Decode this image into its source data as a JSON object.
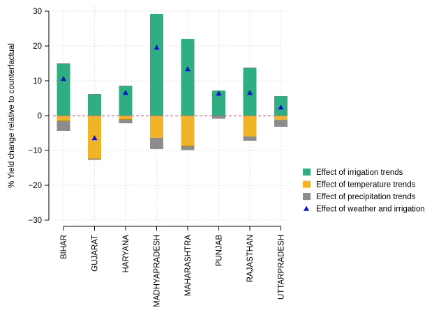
{
  "chart_data": {
    "type": "bar",
    "ylabel": "% Yield change relative to counterfactual",
    "ylim": [
      -30,
      30
    ],
    "yticks": [
      30,
      20,
      10,
      0,
      -10,
      -20,
      -30
    ],
    "ytick_labels": [
      "30",
      "20",
      "10",
      "0",
      "−10",
      "−20",
      "−30"
    ],
    "categories": [
      "BIHAR",
      "GUJARAT",
      "HARYANA",
      "MADHYAPRADESH",
      "MAHARASHTRA",
      "PUNJAB",
      "RAJASTHAN",
      "UTTARPRADESH"
    ],
    "series": [
      {
        "name": "Effect of irrigation trends",
        "color": "#2fae82",
        "values": [
          15.0,
          6.2,
          8.6,
          29.2,
          22.0,
          7.2,
          13.8,
          5.6
        ]
      },
      {
        "name": "Effect of temperature trends",
        "color": "#f0b429",
        "values": [
          -1.4,
          -12.3,
          -1.0,
          -6.4,
          -8.6,
          0.0,
          -6.0,
          -1.2
        ]
      },
      {
        "name": "Effect of precipitation trends",
        "color": "#8c8c8c",
        "values": [
          -3.0,
          -0.4,
          -1.2,
          -3.2,
          -1.3,
          -0.9,
          -1.2,
          -2.0
        ]
      },
      {
        "name": "Effect of weather and irrigation",
        "color": "#1010d0",
        "marker": "triangle",
        "values": [
          10.6,
          -6.4,
          6.6,
          19.6,
          13.4,
          6.4,
          6.6,
          2.4
        ]
      }
    ],
    "baseline_color": "#d9477a",
    "grid": true,
    "legend_position": "right"
  }
}
